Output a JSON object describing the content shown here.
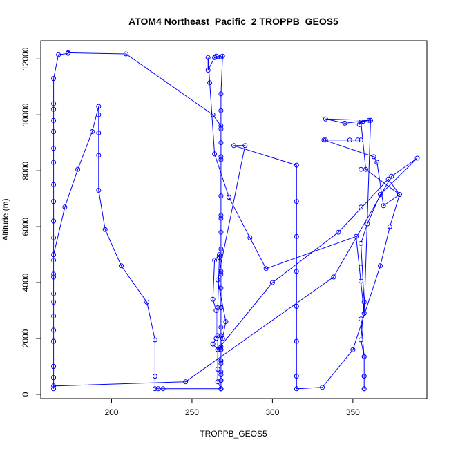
{
  "chart_data": {
    "type": "line",
    "title": "ATOM4 Northeast_Pacific_2 TROPPB_GEOS5",
    "xlabel": "TROPPB_GEOS5",
    "ylabel": "Altitude (m)",
    "xlim": [
      156,
      396
    ],
    "ylim": [
      -150,
      12650
    ],
    "xticks": [
      200,
      250,
      300,
      350
    ],
    "yticks": [
      0,
      2000,
      4000,
      6000,
      8000,
      10000,
      12000
    ],
    "grid": false,
    "colors": {
      "series": "#0000ff",
      "axes": "#000000"
    },
    "series": [
      {
        "marker": "open-circle",
        "points": [
          [
            164,
            200
          ],
          [
            164,
            600
          ],
          [
            164,
            1000
          ],
          [
            164,
            1900
          ],
          [
            164,
            2300
          ],
          [
            164,
            3300
          ],
          [
            164,
            4200
          ],
          [
            164,
            4800
          ],
          [
            164,
            5600
          ],
          [
            164,
            6200
          ],
          [
            164,
            6900
          ],
          [
            164,
            7500
          ],
          [
            164,
            8300
          ],
          [
            164,
            8800
          ],
          [
            164,
            9400
          ],
          [
            164,
            9800
          ],
          [
            164,
            10200
          ],
          [
            164,
            10400
          ],
          [
            164,
            11300
          ],
          [
            167,
            12150
          ],
          [
            173,
            12200
          ],
          [
            173,
            12220
          ],
          [
            209,
            12180
          ],
          [
            263,
            10000
          ],
          [
            268,
            9600
          ],
          [
            268,
            9000
          ],
          [
            268,
            8500
          ],
          [
            268,
            7100
          ],
          [
            268,
            6300
          ],
          [
            268,
            5800
          ],
          [
            268,
            5200
          ],
          [
            268,
            4400
          ],
          [
            268,
            3800
          ],
          [
            268,
            3100
          ],
          [
            268,
            2400
          ],
          [
            268,
            1700
          ],
          [
            268,
            1200
          ],
          [
            268,
            700
          ],
          [
            268,
            500
          ],
          [
            268,
            200
          ],
          [
            268,
            200
          ],
          [
            266,
            450
          ],
          [
            266,
            900
          ],
          [
            266,
            1600
          ],
          [
            266,
            2100
          ],
          [
            266,
            3100
          ],
          [
            267,
            4900
          ],
          [
            267,
            5000
          ],
          [
            264,
            4800
          ],
          [
            263,
            3400
          ],
          [
            265,
            3000
          ],
          [
            265,
            2000
          ],
          [
            263,
            1800
          ],
          [
            266,
            1600
          ],
          [
            300,
            4000
          ],
          [
            341,
            5800
          ],
          [
            372,
            7700
          ],
          [
            379,
            7150
          ],
          [
            373,
            6000
          ],
          [
            367,
            4600
          ],
          [
            350,
            1600
          ],
          [
            331,
            250
          ],
          [
            315,
            200
          ],
          [
            315,
            650
          ],
          [
            315,
            1900
          ],
          [
            315,
            3150
          ],
          [
            315,
            4400
          ],
          [
            315,
            5650
          ],
          [
            315,
            6900
          ],
          [
            315,
            8200
          ],
          [
            276,
            8900
          ],
          [
            283,
            8900
          ],
          [
            266,
            4100
          ],
          [
            271,
            2600
          ],
          [
            269,
            2000
          ],
          [
            268,
            1600
          ],
          [
            268,
            1100
          ],
          [
            268,
            800
          ],
          [
            268,
            500
          ],
          [
            268,
            200
          ],
          [
            232,
            200
          ],
          [
            229,
            200
          ],
          [
            227,
            200
          ],
          [
            227,
            650
          ],
          [
            227,
            1950
          ],
          [
            222,
            3300
          ],
          [
            206,
            4600
          ],
          [
            196,
            5900
          ],
          [
            192,
            7300
          ],
          [
            192,
            8550
          ],
          [
            192,
            9350
          ],
          [
            192,
            10000
          ],
          [
            192,
            10300
          ],
          [
            188,
            9400
          ],
          [
            179,
            8050
          ],
          [
            171,
            6700
          ],
          [
            164,
            5000
          ],
          [
            164,
            4300
          ],
          [
            164,
            3600
          ],
          [
            164,
            2800
          ],
          [
            164,
            1900
          ],
          [
            164,
            1000
          ],
          [
            164,
            300
          ],
          [
            246,
            450
          ],
          [
            338,
            4200
          ],
          [
            374,
            7800
          ],
          [
            390,
            8450
          ],
          [
            367,
            7150
          ],
          [
            359,
            6100
          ],
          [
            355,
            5400
          ],
          [
            357,
            3300
          ],
          [
            355,
            1950
          ],
          [
            357,
            1350
          ],
          [
            357,
            650
          ],
          [
            357,
            200
          ],
          [
            357,
            200
          ],
          [
            357,
            650
          ],
          [
            357,
            1350
          ],
          [
            355,
            2700
          ],
          [
            355,
            4050
          ],
          [
            355,
            4550
          ],
          [
            355,
            6700
          ],
          [
            355,
            8050
          ],
          [
            355,
            9100
          ],
          [
            353,
            9100
          ],
          [
            348,
            9100
          ],
          [
            333,
            9100
          ],
          [
            332,
            9100
          ],
          [
            363,
            8500
          ],
          [
            365,
            8300
          ],
          [
            369,
            6750
          ],
          [
            379,
            7150
          ],
          [
            358,
            8050
          ],
          [
            355,
            9750
          ],
          [
            354,
            9650
          ],
          [
            356,
            9750
          ],
          [
            360,
            9800
          ],
          [
            345,
            9700
          ],
          [
            333,
            9850
          ],
          [
            361,
            9800
          ],
          [
            357,
            2900
          ],
          [
            352,
            5650
          ],
          [
            296,
            4500
          ],
          [
            286,
            5600
          ],
          [
            273,
            7050
          ],
          [
            264,
            8600
          ],
          [
            261,
            11150
          ],
          [
            260,
            12050
          ],
          [
            260,
            11600
          ],
          [
            264,
            12050
          ],
          [
            265,
            12100
          ],
          [
            266,
            12080
          ],
          [
            268,
            12080
          ],
          [
            269,
            12100
          ],
          [
            268,
            10750
          ],
          [
            268,
            10150
          ],
          [
            268,
            9500
          ],
          [
            268,
            8400
          ],
          [
            268,
            6400
          ],
          [
            268,
            4300
          ],
          [
            268,
            3100
          ],
          [
            268,
            2100
          ],
          [
            268,
            1600
          ],
          [
            268,
            1200
          ],
          [
            268,
            500
          ],
          [
            268,
            200
          ]
        ]
      }
    ]
  }
}
